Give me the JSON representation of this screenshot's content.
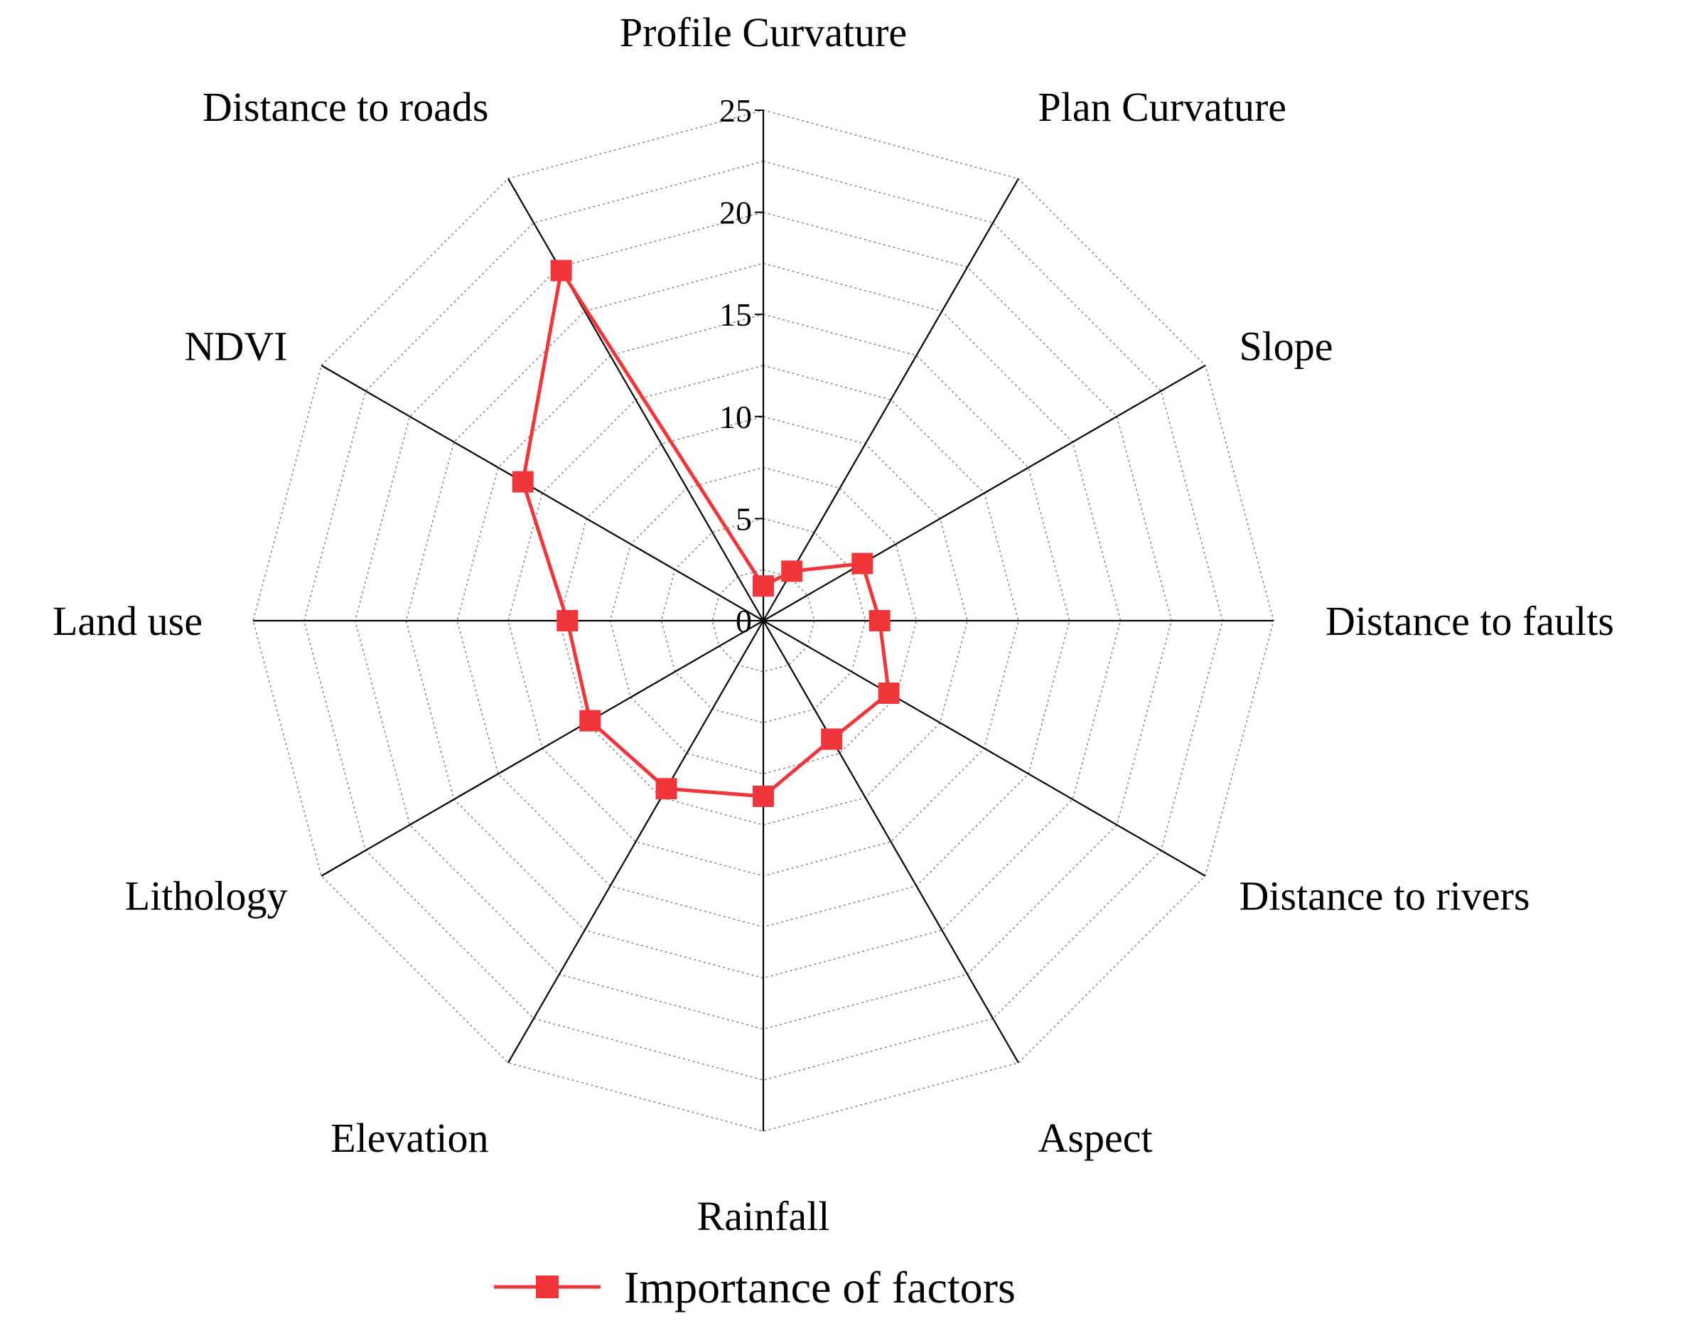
{
  "chart_data": {
    "type": "radar",
    "categories": [
      "Profile Curvature",
      "Plan Curvature",
      "Slope",
      "Distance to faults",
      "Distance to rivers",
      "Aspect",
      "Rainfall",
      "Elevation",
      "Lithology",
      "Land use",
      "NDVI",
      "Distance to roads"
    ],
    "series": [
      {
        "name": "Importance of factors",
        "values": [
          1.7,
          2.8,
          5.6,
          5.7,
          7.1,
          6.7,
          8.6,
          9.5,
          9.8,
          9.6,
          13.6,
          19.8
        ],
        "color": "#f0363a",
        "marker": "square"
      }
    ],
    "rlim": [
      0,
      25
    ],
    "rticks": [
      "0",
      "5",
      "10",
      "15",
      "20",
      "25"
    ],
    "grid": true,
    "legend": "bottom"
  }
}
